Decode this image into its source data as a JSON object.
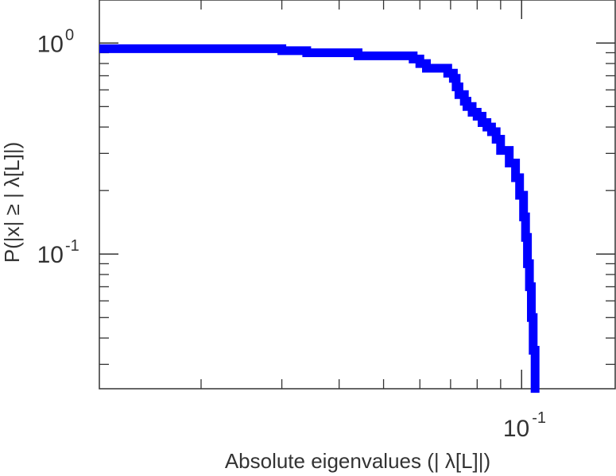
{
  "chart_data": {
    "type": "line",
    "xlabel": "Absolute eigenvalues (|     λ[L]|)",
    "ylabel": "P(|x|  ≥ | λ[L]|)",
    "x_scale": "log",
    "y_scale": "log",
    "xlim": [
      0.012,
      0.16
    ],
    "ylim": [
      0.023,
      1.6
    ],
    "x_ticks": [
      {
        "value": 0.1,
        "base": "10",
        "exp": "-1"
      }
    ],
    "y_ticks": [
      {
        "value": 1,
        "base": "10",
        "exp": "0"
      },
      {
        "value": 0.1,
        "base": "10",
        "exp": "-1"
      }
    ],
    "grid": false,
    "series": [
      {
        "color": "#0000ff",
        "step": true,
        "x": [
          0.012,
          0.03,
          0.034,
          0.044,
          0.058,
          0.06,
          0.062,
          0.069,
          0.071,
          0.072,
          0.073,
          0.075,
          0.076,
          0.078,
          0.08,
          0.082,
          0.084,
          0.086,
          0.088,
          0.09,
          0.094,
          0.097,
          0.099,
          0.101,
          0.102,
          0.103,
          0.104,
          0.105,
          0.106,
          0.107
        ],
        "y": [
          0.94,
          0.92,
          0.9,
          0.87,
          0.84,
          0.8,
          0.76,
          0.72,
          0.68,
          0.62,
          0.57,
          0.53,
          0.5,
          0.47,
          0.45,
          0.42,
          0.4,
          0.38,
          0.35,
          0.31,
          0.27,
          0.23,
          0.19,
          0.15,
          0.12,
          0.09,
          0.07,
          0.05,
          0.035,
          0.022
        ]
      }
    ]
  }
}
